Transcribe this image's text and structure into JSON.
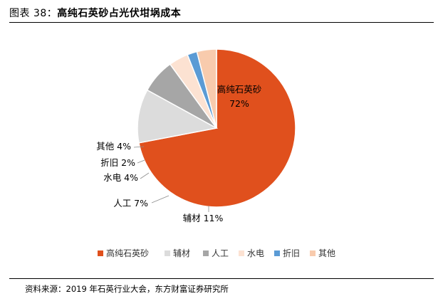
{
  "figure": {
    "title_prefix": "图表 38：",
    "title": "高纯石英砂占光伏坩埚成本",
    "source": "资料来源：2019 年石英行业大会，东方财富证券研究所"
  },
  "chart_data": {
    "type": "pie",
    "title": "",
    "legend_position": "bottom",
    "categories": [
      "高纯石英砂",
      "辅材",
      "人工",
      "水电",
      "折旧",
      "其他"
    ],
    "values": [
      72,
      11,
      7,
      4,
      2,
      4
    ],
    "data_labels": [
      "72%",
      "11%",
      "7%",
      "4%",
      "2%",
      "4%"
    ],
    "colors": [
      "#E0501D",
      "#DCDCDC",
      "#A6A6A6",
      "#FCE2D2",
      "#5B9BD5",
      "#F8CBAD"
    ]
  }
}
